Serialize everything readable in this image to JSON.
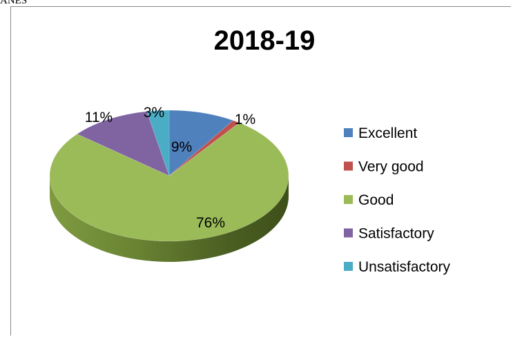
{
  "page": {
    "top_fragment": "ANES"
  },
  "colors": {
    "excellent": "#4F81BD",
    "very_good": "#C0504D",
    "good": "#9BBB59",
    "satisfactory": "#8064A2",
    "unsatisfactory": "#4BACC6"
  },
  "chart_data": {
    "type": "pie",
    "title": "2018-19",
    "categories": [
      "Excellent",
      "Very good",
      "Good",
      "Satisfactory",
      "Unsatisfactory"
    ],
    "values": [
      9,
      1,
      76,
      11,
      3
    ],
    "data_labels": [
      "9%",
      "1%",
      "76%",
      "11%",
      "3%"
    ],
    "style": "3d",
    "legend_position": "right"
  }
}
